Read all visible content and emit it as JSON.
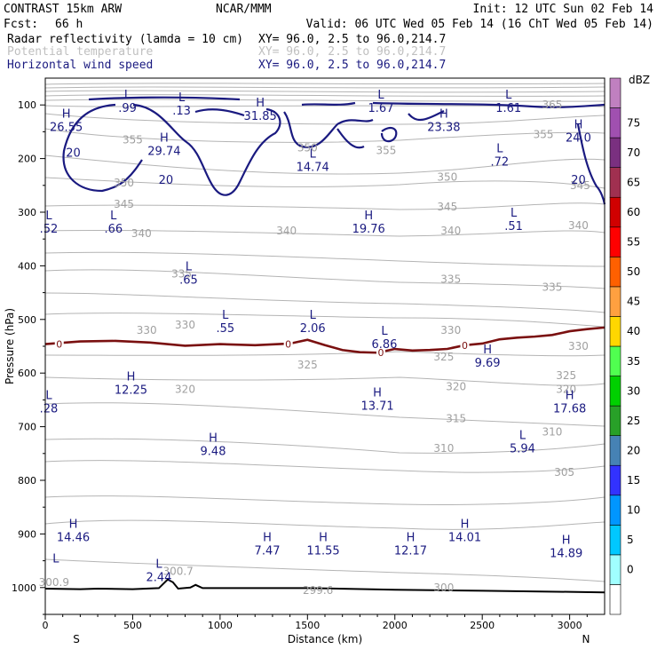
{
  "header": {
    "left": "CONTRAST 15km ARW",
    "center": "NCAR/MMM",
    "init": "Init: 12 UTC Sun 02 Feb 14",
    "fcst_label": "Fcst:",
    "fcst_value": "66 h",
    "valid": "Valid: 06 UTC Wed 05 Feb 14 (16 ChT Wed 05 Feb 14)"
  },
  "fields": [
    {
      "name": "Radar reflectivity (lamda = 10 cm)",
      "xy": "XY=  96.0,  2.5 to  96.0,214.7",
      "color": "#000000"
    },
    {
      "name": "Potential temperature",
      "xy": "XY=  96.0,  2.5 to  96.0,214.7",
      "color": "#c0c0c0"
    },
    {
      "name": "Horizontal wind speed",
      "xy": "XY=  96.0,  2.5 to  96.0,214.7",
      "color": "#1a1a80"
    }
  ],
  "chart_data": {
    "type": "cross-section",
    "xlabel": "Distance (km)",
    "ylabel": "Pressure (hPa)",
    "xlim": [
      0,
      3200
    ],
    "ylim": [
      1050,
      50
    ],
    "x_ticks": [
      "0",
      "500",
      "1000",
      "1500",
      "2000",
      "2500",
      "3000"
    ],
    "y_ticks": [
      "100",
      "200",
      "300",
      "400",
      "500",
      "600",
      "700",
      "800",
      "900",
      "1000"
    ],
    "x_ends": {
      "left": "S",
      "right": "N"
    },
    "colorbar": {
      "unit": "dBZ",
      "levels": [
        "0",
        "5",
        "10",
        "15",
        "20",
        "25",
        "30",
        "35",
        "40",
        "45",
        "50",
        "55",
        "60",
        "65",
        "70",
        "75"
      ],
      "colors": [
        "#ffffff",
        "#a0ffff",
        "#00c8ff",
        "#0096ff",
        "#3232ff",
        "#4682b4",
        "#28a028",
        "#00d000",
        "#50ff50",
        "#ffd700",
        "#ffa040",
        "#ff6000",
        "#ff0000",
        "#d00000",
        "#a03050",
        "#7a3080",
        "#a050b0",
        "#c080c0"
      ]
    },
    "theta_labels": [
      {
        "value": "365",
        "x": 2900,
        "p": 100
      },
      {
        "value": "355",
        "x": 500,
        "p": 165
      },
      {
        "value": "355",
        "x": 2850,
        "p": 155
      },
      {
        "value": "355",
        "x": 1950,
        "p": 185
      },
      {
        "value": "350",
        "x": 1500,
        "p": 180
      },
      {
        "value": "350",
        "x": 450,
        "p": 245
      },
      {
        "value": "350",
        "x": 2300,
        "p": 235
      },
      {
        "value": "345",
        "x": 450,
        "p": 285
      },
      {
        "value": "345",
        "x": 2300,
        "p": 290
      },
      {
        "value": "345",
        "x": 3060,
        "p": 250
      },
      {
        "value": "340",
        "x": 550,
        "p": 340
      },
      {
        "value": "340",
        "x": 1380,
        "p": 335
      },
      {
        "value": "340",
        "x": 2320,
        "p": 335
      },
      {
        "value": "340",
        "x": 3050,
        "p": 325
      },
      {
        "value": "335",
        "x": 780,
        "p": 415
      },
      {
        "value": "335",
        "x": 2320,
        "p": 425
      },
      {
        "value": "335",
        "x": 2900,
        "p": 440
      },
      {
        "value": "330",
        "x": 580,
        "p": 520
      },
      {
        "value": "330",
        "x": 800,
        "p": 510
      },
      {
        "value": "330",
        "x": 2320,
        "p": 520
      },
      {
        "value": "330",
        "x": 3050,
        "p": 550
      },
      {
        "value": "325",
        "x": 1500,
        "p": 585
      },
      {
        "value": "325",
        "x": 2280,
        "p": 570
      },
      {
        "value": "325",
        "x": 2980,
        "p": 605
      },
      {
        "value": "320",
        "x": 800,
        "p": 630
      },
      {
        "value": "320",
        "x": 2350,
        "p": 625
      },
      {
        "value": "320",
        "x": 2980,
        "p": 630
      },
      {
        "value": "315",
        "x": 2350,
        "p": 685
      },
      {
        "value": "310",
        "x": 2900,
        "p": 710
      },
      {
        "value": "310",
        "x": 2280,
        "p": 740
      },
      {
        "value": "305",
        "x": 2970,
        "p": 785
      },
      {
        "value": "300.9",
        "x": 50,
        "p": 990
      },
      {
        "value": "300.7",
        "x": 760,
        "p": 970
      },
      {
        "value": "299.6",
        "x": 1560,
        "p": 1005
      },
      {
        "value": "300",
        "x": 2280,
        "p": 1000
      }
    ],
    "wind_labels": [
      {
        "kind": "L",
        "value": ".99",
        "x": 470,
        "p": 95
      },
      {
        "kind": "L",
        "value": ".13",
        "x": 780,
        "p": 100
      },
      {
        "kind": "H",
        "value": "31.85",
        "x": 1230,
        "p": 110
      },
      {
        "kind": "L",
        "value": "1.67",
        "x": 1920,
        "p": 95
      },
      {
        "kind": "L",
        "value": "1.61",
        "x": 2650,
        "p": 95
      },
      {
        "kind": "H",
        "value": "26.55",
        "x": 120,
        "p": 130
      },
      {
        "kind": "H",
        "value": "23.38",
        "x": 2280,
        "p": 130
      },
      {
        "kind": "H",
        "value": "24.0",
        "x": 3050,
        "p": 150
      },
      {
        "kind": "H",
        "value": "29.74",
        "x": 680,
        "p": 175
      },
      {
        "kind": "L",
        "value": ".72",
        "x": 2600,
        "p": 195
      },
      {
        "kind": "L",
        "value": "14.74",
        "x": 1530,
        "p": 205
      },
      {
        "kind": "L",
        "value": ".52",
        "x": 20,
        "p": 320
      },
      {
        "kind": "L",
        "value": ".66",
        "x": 390,
        "p": 320
      },
      {
        "kind": "L",
        "value": ".51",
        "x": 2680,
        "p": 315
      },
      {
        "kind": "H",
        "value": "19.76",
        "x": 1850,
        "p": 320
      },
      {
        "kind": "L",
        "value": ".65",
        "x": 820,
        "p": 415
      },
      {
        "kind": "L",
        "value": ".55",
        "x": 1030,
        "p": 505
      },
      {
        "kind": "L",
        "value": "2.06",
        "x": 1530,
        "p": 505
      },
      {
        "kind": "L",
        "value": "6.86",
        "x": 1940,
        "p": 535
      },
      {
        "kind": "H",
        "value": "9.69",
        "x": 2530,
        "p": 570
      },
      {
        "kind": "H",
        "value": "12.25",
        "x": 490,
        "p": 620
      },
      {
        "kind": "H",
        "value": "13.71",
        "x": 1900,
        "p": 650
      },
      {
        "kind": "H",
        "value": "17.68",
        "x": 3000,
        "p": 655
      },
      {
        "kind": "L",
        "value": ".28",
        "x": 20,
        "p": 655
      },
      {
        "kind": "H",
        "value": "9.48",
        "x": 960,
        "p": 735
      },
      {
        "kind": "L",
        "value": "5.94",
        "x": 2730,
        "p": 730
      },
      {
        "kind": "H",
        "value": "14.46",
        "x": 160,
        "p": 895
      },
      {
        "kind": "H",
        "value": "14.01",
        "x": 2400,
        "p": 895
      },
      {
        "kind": "H",
        "value": "7.47",
        "x": 1270,
        "p": 920
      },
      {
        "kind": "H",
        "value": "11.55",
        "x": 1590,
        "p": 920
      },
      {
        "kind": "H",
        "value": "12.17",
        "x": 2090,
        "p": 920
      },
      {
        "kind": "H",
        "value": "14.89",
        "x": 2980,
        "p": 925
      },
      {
        "kind": "L",
        "value": "2.44",
        "x": 650,
        "p": 970
      },
      {
        "kind": "L",
        "value": "",
        "x": 60,
        "p": 960
      }
    ],
    "wind_contour_values": [
      {
        "value": "20",
        "x": 160,
        "p": 190
      },
      {
        "value": "20",
        "x": 690,
        "p": 240
      },
      {
        "value": "20",
        "x": 3050,
        "p": 240
      }
    ],
    "zero_dbz_labels": [
      {
        "value": "0",
        "x": 80,
        "p": 546
      },
      {
        "value": "0",
        "x": 1390,
        "p": 546
      },
      {
        "value": "0",
        "x": 1920,
        "p": 562
      },
      {
        "value": "0",
        "x": 2400,
        "p": 548
      }
    ],
    "zero_line": [
      [
        0,
        546
      ],
      [
        200,
        541
      ],
      [
        400,
        540
      ],
      [
        600,
        543
      ],
      [
        800,
        549
      ],
      [
        1000,
        546
      ],
      [
        1200,
        548
      ],
      [
        1400,
        545
      ],
      [
        1500,
        538
      ],
      [
        1600,
        548
      ],
      [
        1700,
        557
      ],
      [
        1800,
        561
      ],
      [
        1900,
        562
      ],
      [
        2000,
        555
      ],
      [
        2100,
        558
      ],
      [
        2200,
        557
      ],
      [
        2300,
        555
      ],
      [
        2400,
        548
      ],
      [
        2500,
        545
      ],
      [
        2600,
        537
      ],
      [
        2700,
        534
      ],
      [
        2800,
        532
      ],
      [
        2900,
        529
      ],
      [
        3000,
        522
      ],
      [
        3100,
        518
      ],
      [
        3200,
        515
      ]
    ],
    "surface": [
      [
        0,
        1002
      ],
      [
        200,
        1003
      ],
      [
        300,
        1002
      ],
      [
        500,
        1003
      ],
      [
        650,
        1001
      ],
      [
        700,
        985
      ],
      [
        730,
        990
      ],
      [
        760,
        1002
      ],
      [
        830,
        1000
      ],
      [
        860,
        995
      ],
      [
        900,
        1001
      ],
      [
        1500,
        1001
      ],
      [
        2000,
        1004
      ],
      [
        2500,
        1006
      ],
      [
        3000,
        1008
      ],
      [
        3200,
        1009
      ]
    ]
  }
}
